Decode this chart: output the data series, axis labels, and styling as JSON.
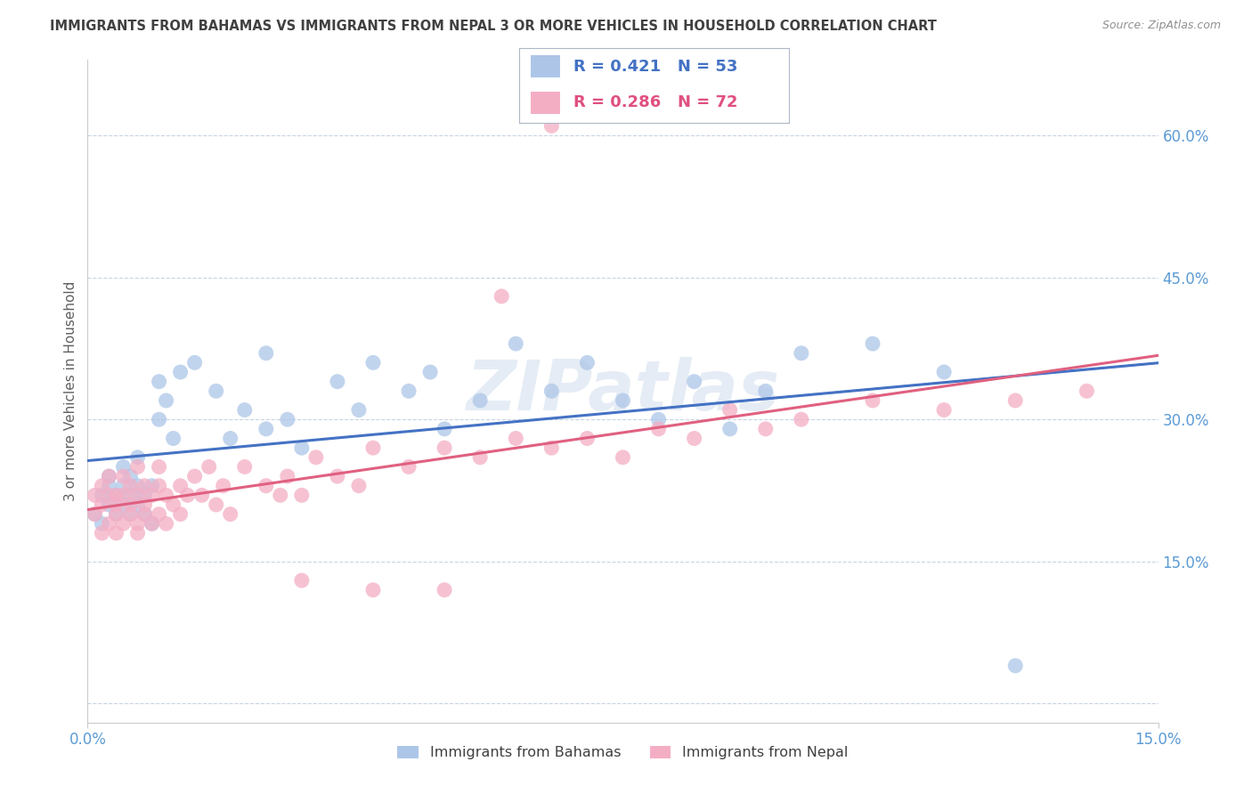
{
  "title": "IMMIGRANTS FROM BAHAMAS VS IMMIGRANTS FROM NEPAL 3 OR MORE VEHICLES IN HOUSEHOLD CORRELATION CHART",
  "source": "Source: ZipAtlas.com",
  "ylabel": "3 or more Vehicles in Household",
  "y_ticks": [
    0.0,
    0.15,
    0.3,
    0.45,
    0.6
  ],
  "y_tick_labels": [
    "",
    "15.0%",
    "30.0%",
    "45.0%",
    "60.0%"
  ],
  "x_range": [
    0.0,
    0.15
  ],
  "y_range": [
    -0.02,
    0.68
  ],
  "blue_R": 0.421,
  "blue_N": 53,
  "pink_R": 0.286,
  "pink_N": 72,
  "blue_color": "#adc6e8",
  "blue_line_color": "#4472c4",
  "pink_color": "#f4aec4",
  "pink_line_color": "#e06080",
  "legend_blue_text_color": "#4472c4",
  "legend_pink_text_color": "#e05080",
  "title_color": "#404040",
  "source_color": "#909090",
  "axis_label_color": "#5b9bd5",
  "grid_color": "#c8d4e4",
  "watermark": "ZIPatlas",
  "blue_scatter_x": [
    0.001,
    0.002,
    0.002,
    0.003,
    0.003,
    0.003,
    0.004,
    0.004,
    0.005,
    0.005,
    0.005,
    0.006,
    0.006,
    0.006,
    0.007,
    0.007,
    0.007,
    0.008,
    0.008,
    0.009,
    0.009,
    0.01,
    0.01,
    0.011,
    0.012,
    0.013,
    0.015,
    0.018,
    0.02,
    0.022,
    0.025,
    0.028,
    0.03,
    0.035,
    0.038,
    0.04,
    0.045,
    0.048,
    0.05,
    0.055,
    0.06,
    0.065,
    0.07,
    0.075,
    0.08,
    0.085,
    0.09,
    0.095,
    0.1,
    0.11,
    0.12,
    0.13,
    0.025
  ],
  "blue_scatter_y": [
    0.2,
    0.22,
    0.19,
    0.24,
    0.21,
    0.23,
    0.2,
    0.22,
    0.21,
    0.23,
    0.25,
    0.22,
    0.2,
    0.24,
    0.21,
    0.23,
    0.26,
    0.2,
    0.22,
    0.19,
    0.23,
    0.3,
    0.34,
    0.32,
    0.28,
    0.35,
    0.36,
    0.33,
    0.28,
    0.31,
    0.29,
    0.3,
    0.27,
    0.34,
    0.31,
    0.36,
    0.33,
    0.35,
    0.29,
    0.32,
    0.38,
    0.33,
    0.36,
    0.32,
    0.3,
    0.34,
    0.29,
    0.33,
    0.37,
    0.38,
    0.35,
    0.04,
    0.37
  ],
  "pink_scatter_x": [
    0.001,
    0.001,
    0.002,
    0.002,
    0.002,
    0.003,
    0.003,
    0.003,
    0.004,
    0.004,
    0.004,
    0.004,
    0.005,
    0.005,
    0.005,
    0.006,
    0.006,
    0.006,
    0.007,
    0.007,
    0.007,
    0.007,
    0.008,
    0.008,
    0.008,
    0.009,
    0.009,
    0.01,
    0.01,
    0.01,
    0.011,
    0.011,
    0.012,
    0.013,
    0.013,
    0.014,
    0.015,
    0.016,
    0.017,
    0.018,
    0.019,
    0.02,
    0.022,
    0.025,
    0.027,
    0.028,
    0.03,
    0.032,
    0.035,
    0.038,
    0.04,
    0.045,
    0.05,
    0.055,
    0.06,
    0.065,
    0.07,
    0.075,
    0.08,
    0.085,
    0.09,
    0.095,
    0.1,
    0.11,
    0.12,
    0.13,
    0.058,
    0.14,
    0.03,
    0.04,
    0.05,
    0.065
  ],
  "pink_scatter_y": [
    0.2,
    0.22,
    0.18,
    0.21,
    0.23,
    0.19,
    0.22,
    0.24,
    0.2,
    0.22,
    0.18,
    0.21,
    0.19,
    0.22,
    0.24,
    0.2,
    0.23,
    0.21,
    0.19,
    0.22,
    0.25,
    0.18,
    0.2,
    0.23,
    0.21,
    0.19,
    0.22,
    0.2,
    0.23,
    0.25,
    0.19,
    0.22,
    0.21,
    0.23,
    0.2,
    0.22,
    0.24,
    0.22,
    0.25,
    0.21,
    0.23,
    0.2,
    0.25,
    0.23,
    0.22,
    0.24,
    0.22,
    0.26,
    0.24,
    0.23,
    0.27,
    0.25,
    0.27,
    0.26,
    0.28,
    0.27,
    0.28,
    0.26,
    0.29,
    0.28,
    0.31,
    0.29,
    0.3,
    0.32,
    0.31,
    0.32,
    0.43,
    0.33,
    0.13,
    0.12,
    0.12,
    0.61
  ]
}
